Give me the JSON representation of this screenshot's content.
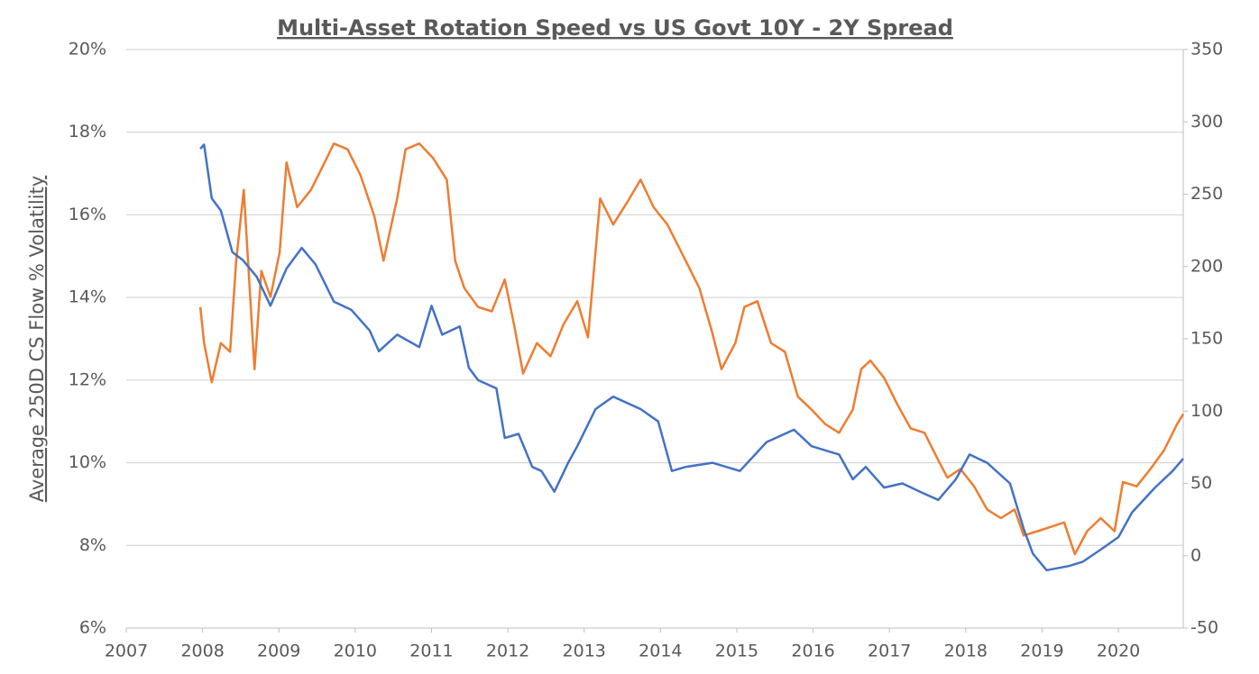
{
  "chart_data": {
    "type": "line",
    "title": "Multi-Asset Rotation Speed vs US Govt 10Y - 2Y Spread",
    "y_label": "Average 250D CS Flow % Volatility",
    "xlim": [
      2007,
      2020.85
    ],
    "xticks": [
      2007,
      2008,
      2009,
      2010,
      2011,
      2012,
      2013,
      2014,
      2015,
      2016,
      2017,
      2018,
      2019,
      2020
    ],
    "ylim": [
      6,
      20
    ],
    "yticks": [
      {
        "value": 6,
        "label": "6%"
      },
      {
        "value": 8,
        "label": "8%"
      },
      {
        "value": 10,
        "label": "10%"
      },
      {
        "value": 12,
        "label": "12%"
      },
      {
        "value": 14,
        "label": "14%"
      },
      {
        "value": 16,
        "label": "16%"
      },
      {
        "value": 18,
        "label": "18%"
      },
      {
        "value": 20,
        "label": "20%"
      }
    ],
    "y2lim": [
      -50,
      350
    ],
    "y2ticks": [
      -50,
      0,
      50,
      100,
      150,
      200,
      250,
      300,
      350
    ],
    "grid": true,
    "series": [
      {
        "color": "#4472c4",
        "axis": "y",
        "x": [
          2007.97,
          2008.02,
          2008.12,
          2008.24,
          2008.39,
          2008.53,
          2008.71,
          2008.89,
          2009.1,
          2009.3,
          2009.48,
          2009.72,
          2009.95,
          2010.19,
          2010.31,
          2010.55,
          2010.84,
          2011.0,
          2011.14,
          2011.37,
          2011.49,
          2011.61,
          2011.85,
          2011.96,
          2012.14,
          2012.32,
          2012.44,
          2012.61,
          2012.79,
          2012.91,
          2013.15,
          2013.38,
          2013.74,
          2013.97,
          2014.15,
          2014.33,
          2014.68,
          2015.04,
          2015.39,
          2015.75,
          2015.98,
          2016.34,
          2016.52,
          2016.69,
          2016.93,
          2017.17,
          2017.4,
          2017.64,
          2017.87,
          2018.05,
          2018.28,
          2018.58,
          2018.76,
          2018.88,
          2019.06,
          2019.35,
          2019.53,
          2019.77,
          2020.0,
          2020.18,
          2020.48,
          2020.71,
          2020.85
        ],
        "values": [
          17.6,
          17.7,
          16.4,
          16.1,
          15.1,
          14.9,
          14.5,
          13.8,
          14.7,
          15.2,
          14.8,
          13.9,
          13.7,
          13.2,
          12.7,
          13.1,
          12.8,
          13.8,
          13.1,
          13.3,
          12.3,
          12.0,
          11.8,
          10.6,
          10.7,
          9.9,
          9.8,
          9.3,
          10.0,
          10.4,
          11.3,
          11.6,
          11.3,
          11.0,
          9.8,
          9.9,
          10.0,
          9.8,
          10.5,
          10.8,
          10.4,
          10.2,
          9.6,
          9.9,
          9.4,
          9.5,
          9.3,
          9.1,
          9.6,
          10.2,
          10.0,
          9.5,
          8.4,
          7.8,
          7.4,
          7.5,
          7.6,
          7.9,
          8.2,
          8.8,
          9.4,
          9.8,
          10.1
        ]
      },
      {
        "color": "#ed7d31",
        "axis": "y2",
        "x": [
          2007.97,
          2008.02,
          2008.12,
          2008.24,
          2008.36,
          2008.44,
          2008.54,
          2008.68,
          2008.77,
          2008.89,
          2009.01,
          2009.1,
          2009.24,
          2009.42,
          2009.6,
          2009.72,
          2009.9,
          2010.07,
          2010.25,
          2010.37,
          2010.55,
          2010.66,
          2010.84,
          2011.02,
          2011.2,
          2011.31,
          2011.43,
          2011.61,
          2011.79,
          2011.96,
          2012.08,
          2012.2,
          2012.38,
          2012.56,
          2012.73,
          2012.91,
          2013.05,
          2013.21,
          2013.38,
          2013.56,
          2013.74,
          2013.91,
          2014.09,
          2014.33,
          2014.51,
          2014.68,
          2014.8,
          2014.98,
          2015.1,
          2015.27,
          2015.45,
          2015.63,
          2015.8,
          2015.98,
          2016.16,
          2016.34,
          2016.52,
          2016.63,
          2016.75,
          2016.93,
          2017.11,
          2017.28,
          2017.46,
          2017.64,
          2017.76,
          2017.93,
          2018.11,
          2018.28,
          2018.46,
          2018.64,
          2018.76,
          2018.94,
          2019.12,
          2019.29,
          2019.43,
          2019.59,
          2019.77,
          2019.95,
          2020.06,
          2020.24,
          2020.42,
          2020.6,
          2020.77,
          2020.85
        ],
        "values": [
          172,
          147,
          120,
          147,
          141,
          204,
          253,
          129,
          197,
          179,
          210,
          272,
          241,
          253,
          272,
          285,
          281,
          263,
          235,
          204,
          247,
          281,
          285,
          275,
          260,
          204,
          185,
          172,
          169,
          191,
          160,
          126,
          147,
          138,
          160,
          176,
          151,
          247,
          229,
          244,
          260,
          241,
          229,
          204,
          185,
          154,
          129,
          147,
          172,
          176,
          147,
          141,
          110,
          101,
          91,
          85,
          101,
          129,
          135,
          123,
          104,
          88,
          85,
          66,
          54,
          60,
          48,
          32,
          26,
          32,
          14,
          17,
          20,
          23,
          1,
          17,
          26,
          17,
          51,
          48,
          60,
          73,
          91,
          98
        ]
      }
    ]
  }
}
